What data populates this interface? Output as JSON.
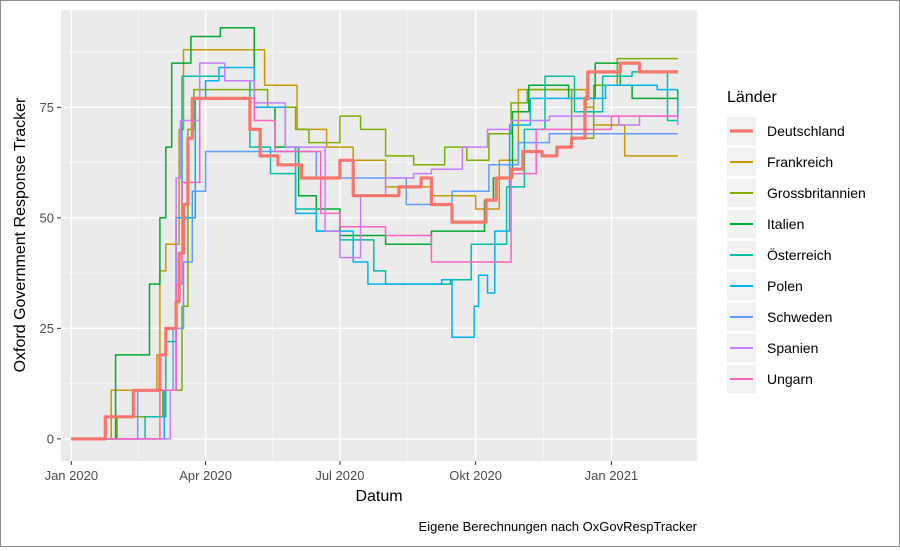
{
  "chart_data": {
    "type": "line",
    "title": "",
    "xlabel": "Datum",
    "ylabel": "Oxford Government Response Tracker",
    "caption": "Eigene Berechnungen nach OxGovRespTracker",
    "legend_title": "Länder",
    "legend_position": "right",
    "grid": true,
    "xlim": [
      "2019-12-25",
      "2021-02-28"
    ],
    "ylim": [
      -5,
      97
    ],
    "x_ticks": [
      "2020-01-01",
      "2020-04-01",
      "2020-07-01",
      "2020-10-01",
      "2021-01-01"
    ],
    "x_tick_labels": [
      "Jan 2020",
      "Apr 2020",
      "Jul 2020",
      "Okt 2020",
      "Jan 2021"
    ],
    "y_ticks": [
      0,
      25,
      50,
      75
    ],
    "y_tick_labels": [
      "0",
      "25",
      "50",
      "75"
    ],
    "series": [
      {
        "name": "Deutschland",
        "color": "#F8766D",
        "points": [
          [
            "2020-01-01",
            0
          ],
          [
            "2020-01-20",
            0
          ],
          [
            "2020-01-24",
            5
          ],
          [
            "2020-02-12",
            11
          ],
          [
            "2020-03-01",
            19
          ],
          [
            "2020-03-05",
            25
          ],
          [
            "2020-03-12",
            31
          ],
          [
            "2020-03-14",
            42
          ],
          [
            "2020-03-17",
            53
          ],
          [
            "2020-03-20",
            68
          ],
          [
            "2020-03-23",
            77
          ],
          [
            "2020-04-20",
            77
          ],
          [
            "2020-05-01",
            70
          ],
          [
            "2020-05-08",
            64
          ],
          [
            "2020-05-20",
            62
          ],
          [
            "2020-06-05",
            59
          ],
          [
            "2020-06-20",
            59
          ],
          [
            "2020-07-01",
            63
          ],
          [
            "2020-07-10",
            55
          ],
          [
            "2020-08-01",
            55
          ],
          [
            "2020-08-10",
            57
          ],
          [
            "2020-08-25",
            59
          ],
          [
            "2020-09-01",
            53
          ],
          [
            "2020-09-15",
            49
          ],
          [
            "2020-10-01",
            49
          ],
          [
            "2020-10-08",
            54
          ],
          [
            "2020-10-15",
            59
          ],
          [
            "2020-10-25",
            61
          ],
          [
            "2020-11-02",
            65
          ],
          [
            "2020-11-15",
            64
          ],
          [
            "2020-11-25",
            66
          ],
          [
            "2020-12-05",
            68
          ],
          [
            "2020-12-14",
            77
          ],
          [
            "2020-12-16",
            83
          ],
          [
            "2021-01-07",
            85
          ],
          [
            "2021-01-20",
            83
          ],
          [
            "2021-02-15",
            83
          ]
        ]
      },
      {
        "name": "Frankreich",
        "color": "#C49A00",
        "points": [
          [
            "2020-01-01",
            0
          ],
          [
            "2020-01-25",
            0
          ],
          [
            "2020-01-28",
            11
          ],
          [
            "2020-02-28",
            19
          ],
          [
            "2020-03-01",
            38
          ],
          [
            "2020-03-05",
            44
          ],
          [
            "2020-03-14",
            70
          ],
          [
            "2020-03-17",
            88
          ],
          [
            "2020-05-11",
            80
          ],
          [
            "2020-06-02",
            70
          ],
          [
            "2020-06-22",
            66
          ],
          [
            "2020-07-10",
            63
          ],
          [
            "2020-08-01",
            57
          ],
          [
            "2020-09-01",
            55
          ],
          [
            "2020-10-01",
            52
          ],
          [
            "2020-10-17",
            63
          ],
          [
            "2020-10-30",
            79
          ],
          [
            "2020-12-15",
            75
          ],
          [
            "2020-12-20",
            71
          ],
          [
            "2021-01-10",
            64
          ],
          [
            "2021-02-15",
            64
          ]
        ]
      },
      {
        "name": "Grossbritannien",
        "color": "#7CAE00",
        "points": [
          [
            "2020-01-01",
            0
          ],
          [
            "2020-02-01",
            5
          ],
          [
            "2020-03-03",
            11
          ],
          [
            "2020-03-16",
            30
          ],
          [
            "2020-03-20",
            70
          ],
          [
            "2020-03-24",
            79
          ],
          [
            "2020-05-13",
            75
          ],
          [
            "2020-06-01",
            70
          ],
          [
            "2020-06-10",
            67
          ],
          [
            "2020-07-01",
            73
          ],
          [
            "2020-07-15",
            70
          ],
          [
            "2020-08-01",
            64
          ],
          [
            "2020-08-20",
            62
          ],
          [
            "2020-09-10",
            66
          ],
          [
            "2020-09-25",
            63
          ],
          [
            "2020-10-10",
            69
          ],
          [
            "2020-10-25",
            76
          ],
          [
            "2020-11-05",
            79
          ],
          [
            "2020-12-05",
            68
          ],
          [
            "2020-12-20",
            80
          ],
          [
            "2021-01-05",
            86
          ],
          [
            "2021-02-15",
            86
          ]
        ]
      },
      {
        "name": "Italien",
        "color": "#00A92F",
        "points": [
          [
            "2020-01-01",
            0
          ],
          [
            "2020-01-31",
            19
          ],
          [
            "2020-02-23",
            35
          ],
          [
            "2020-03-01",
            50
          ],
          [
            "2020-03-05",
            66
          ],
          [
            "2020-03-09",
            85
          ],
          [
            "2020-03-22",
            91
          ],
          [
            "2020-04-11",
            93
          ],
          [
            "2020-05-04",
            75
          ],
          [
            "2020-05-18",
            66
          ],
          [
            "2020-06-03",
            55
          ],
          [
            "2020-06-15",
            52
          ],
          [
            "2020-07-01",
            46
          ],
          [
            "2020-08-01",
            44
          ],
          [
            "2020-09-01",
            47
          ],
          [
            "2020-10-07",
            54
          ],
          [
            "2020-10-13",
            59
          ],
          [
            "2020-10-26",
            74
          ],
          [
            "2020-11-06",
            80
          ],
          [
            "2020-12-03",
            77
          ],
          [
            "2020-12-21",
            85
          ],
          [
            "2021-01-07",
            80
          ],
          [
            "2021-01-15",
            77
          ],
          [
            "2021-02-15",
            79
          ]
        ]
      },
      {
        "name": "Österreich",
        "color": "#00BFA4",
        "points": [
          [
            "2020-01-01",
            0
          ],
          [
            "2020-02-20",
            5
          ],
          [
            "2020-03-05",
            22
          ],
          [
            "2020-03-12",
            50
          ],
          [
            "2020-03-16",
            82
          ],
          [
            "2020-04-14",
            81
          ],
          [
            "2020-05-01",
            66
          ],
          [
            "2020-05-15",
            60
          ],
          [
            "2020-06-01",
            52
          ],
          [
            "2020-06-15",
            47
          ],
          [
            "2020-07-01",
            45
          ],
          [
            "2020-07-24",
            38
          ],
          [
            "2020-08-01",
            35
          ],
          [
            "2020-09-14",
            36
          ],
          [
            "2020-09-28",
            44
          ],
          [
            "2020-10-22",
            57
          ],
          [
            "2020-11-03",
            70
          ],
          [
            "2020-11-17",
            82
          ],
          [
            "2020-12-07",
            74
          ],
          [
            "2020-12-26",
            82
          ],
          [
            "2021-01-15",
            83
          ],
          [
            "2021-02-08",
            72
          ],
          [
            "2021-02-15",
            78
          ]
        ]
      },
      {
        "name": "Polen",
        "color": "#00B4F0",
        "points": [
          [
            "2020-01-01",
            0
          ],
          [
            "2020-03-04",
            11
          ],
          [
            "2020-03-12",
            50
          ],
          [
            "2020-03-25",
            77
          ],
          [
            "2020-04-01",
            81
          ],
          [
            "2020-04-10",
            84
          ],
          [
            "2020-05-04",
            75
          ],
          [
            "2020-05-25",
            66
          ],
          [
            "2020-06-01",
            51
          ],
          [
            "2020-06-15",
            47
          ],
          [
            "2020-07-10",
            40
          ],
          [
            "2020-07-20",
            35
          ],
          [
            "2020-08-10",
            35
          ],
          [
            "2020-09-08",
            36
          ],
          [
            "2020-09-15",
            23
          ],
          [
            "2020-09-30",
            30
          ],
          [
            "2020-10-03",
            37
          ],
          [
            "2020-10-09",
            33
          ],
          [
            "2020-10-14",
            47
          ],
          [
            "2020-10-24",
            71
          ],
          [
            "2020-11-07",
            77
          ],
          [
            "2020-12-28",
            80
          ],
          [
            "2021-02-01",
            79
          ],
          [
            "2021-02-15",
            79
          ]
        ]
      },
      {
        "name": "Schweden",
        "color": "#619CFF",
        "points": [
          [
            "2020-01-01",
            0
          ],
          [
            "2020-02-15",
            11
          ],
          [
            "2020-03-10",
            25
          ],
          [
            "2020-03-17",
            40
          ],
          [
            "2020-03-23",
            56
          ],
          [
            "2020-04-01",
            65
          ],
          [
            "2020-05-15",
            65
          ],
          [
            "2020-06-15",
            59
          ],
          [
            "2020-07-15",
            59
          ],
          [
            "2020-08-15",
            53
          ],
          [
            "2020-09-15",
            56
          ],
          [
            "2020-10-10",
            62
          ],
          [
            "2020-10-30",
            67
          ],
          [
            "2020-11-20",
            69
          ],
          [
            "2020-12-20",
            69
          ],
          [
            "2021-01-10",
            69
          ],
          [
            "2021-02-15",
            69
          ]
        ]
      },
      {
        "name": "Spanien",
        "color": "#C77CFF",
        "points": [
          [
            "2020-01-01",
            0
          ],
          [
            "2020-03-08",
            11
          ],
          [
            "2020-03-12",
            59
          ],
          [
            "2020-03-15",
            72
          ],
          [
            "2020-03-28",
            85
          ],
          [
            "2020-04-14",
            81
          ],
          [
            "2020-05-04",
            76
          ],
          [
            "2020-05-25",
            66
          ],
          [
            "2020-06-21",
            47
          ],
          [
            "2020-07-01",
            41
          ],
          [
            "2020-07-15",
            55
          ],
          [
            "2020-08-01",
            59
          ],
          [
            "2020-08-20",
            60
          ],
          [
            "2020-09-01",
            61
          ],
          [
            "2020-09-22",
            66
          ],
          [
            "2020-10-09",
            70
          ],
          [
            "2020-10-25",
            72
          ],
          [
            "2020-11-20",
            73
          ],
          [
            "2021-01-06",
            71
          ],
          [
            "2021-01-20",
            73
          ],
          [
            "2021-02-15",
            71
          ]
        ]
      },
      {
        "name": "Ungarn",
        "color": "#FF61C3",
        "points": [
          [
            "2020-01-01",
            0
          ],
          [
            "2020-03-01",
            11
          ],
          [
            "2020-03-12",
            35
          ],
          [
            "2020-03-16",
            58
          ],
          [
            "2020-03-28",
            77
          ],
          [
            "2020-05-04",
            72
          ],
          [
            "2020-05-18",
            65
          ],
          [
            "2020-06-18",
            51
          ],
          [
            "2020-07-01",
            48
          ],
          [
            "2020-08-01",
            46
          ],
          [
            "2020-08-20",
            46
          ],
          [
            "2020-09-01",
            40
          ],
          [
            "2020-09-15",
            40
          ],
          [
            "2020-10-15",
            40
          ],
          [
            "2020-10-25",
            60
          ],
          [
            "2020-11-11",
            70
          ],
          [
            "2020-12-01",
            70
          ],
          [
            "2021-01-01",
            73
          ],
          [
            "2021-02-15",
            73
          ]
        ]
      }
    ]
  }
}
